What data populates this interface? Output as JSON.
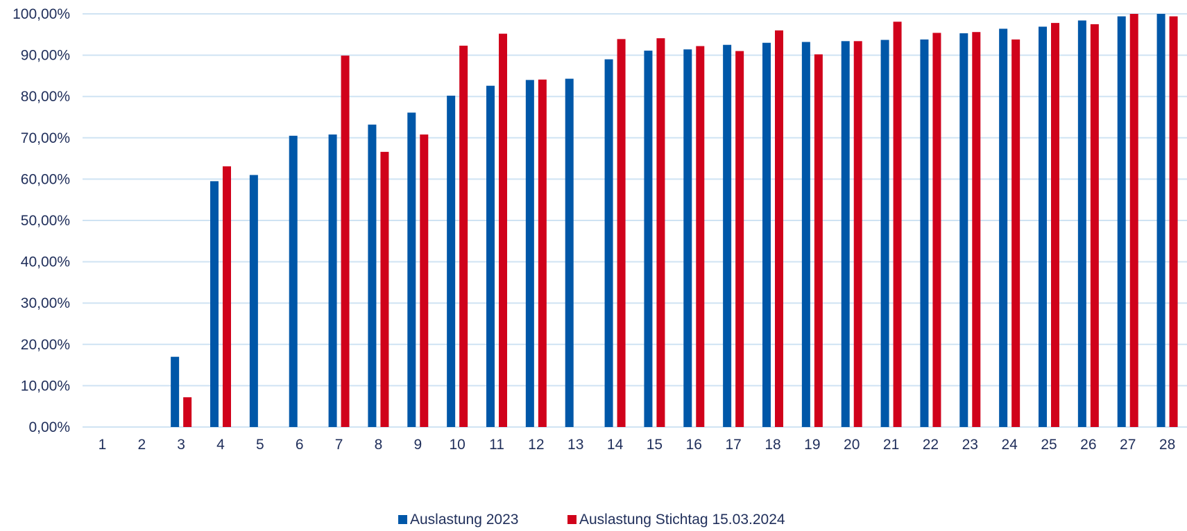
{
  "chart_data": {
    "type": "bar",
    "categories": [
      "1",
      "2",
      "3",
      "4",
      "5",
      "6",
      "7",
      "8",
      "9",
      "10",
      "11",
      "12",
      "13",
      "14",
      "15",
      "16",
      "17",
      "18",
      "19",
      "20",
      "21",
      "22",
      "23",
      "24",
      "25",
      "26",
      "27",
      "28"
    ],
    "series": [
      {
        "name": "Auslastung 2023",
        "color": "#0057a8",
        "values": [
          0,
          0,
          17.0,
          59.5,
          61.0,
          70.5,
          70.8,
          73.2,
          76.1,
          80.2,
          82.6,
          84.0,
          84.3,
          89.0,
          91.1,
          91.4,
          92.5,
          93.0,
          93.2,
          93.4,
          93.7,
          93.8,
          95.3,
          96.4,
          96.9,
          98.4,
          99.4,
          100.0
        ]
      },
      {
        "name": "Auslastung Stichtag 15.03.2024",
        "color": "#d0021b",
        "values": [
          0,
          0,
          7.2,
          63.1,
          0,
          0,
          89.9,
          66.6,
          70.8,
          92.3,
          95.2,
          84.1,
          0,
          93.9,
          94.1,
          92.2,
          91.0,
          96.0,
          90.2,
          93.4,
          98.1,
          95.4,
          95.6,
          93.8,
          97.8,
          97.5,
          100.0,
          99.4
        ]
      }
    ],
    "yticks": [
      "0,00%",
      "10,00%",
      "20,00%",
      "30,00%",
      "40,00%",
      "50,00%",
      "60,00%",
      "70,00%",
      "80,00%",
      "90,00%",
      "100,00%"
    ],
    "ylim": [
      0,
      100
    ],
    "grid": true,
    "grid_color": "#cfe3f3",
    "text_color": "#1f2e5a",
    "legend_position": "bottom-center",
    "title": "",
    "xlabel": "",
    "ylabel": ""
  }
}
